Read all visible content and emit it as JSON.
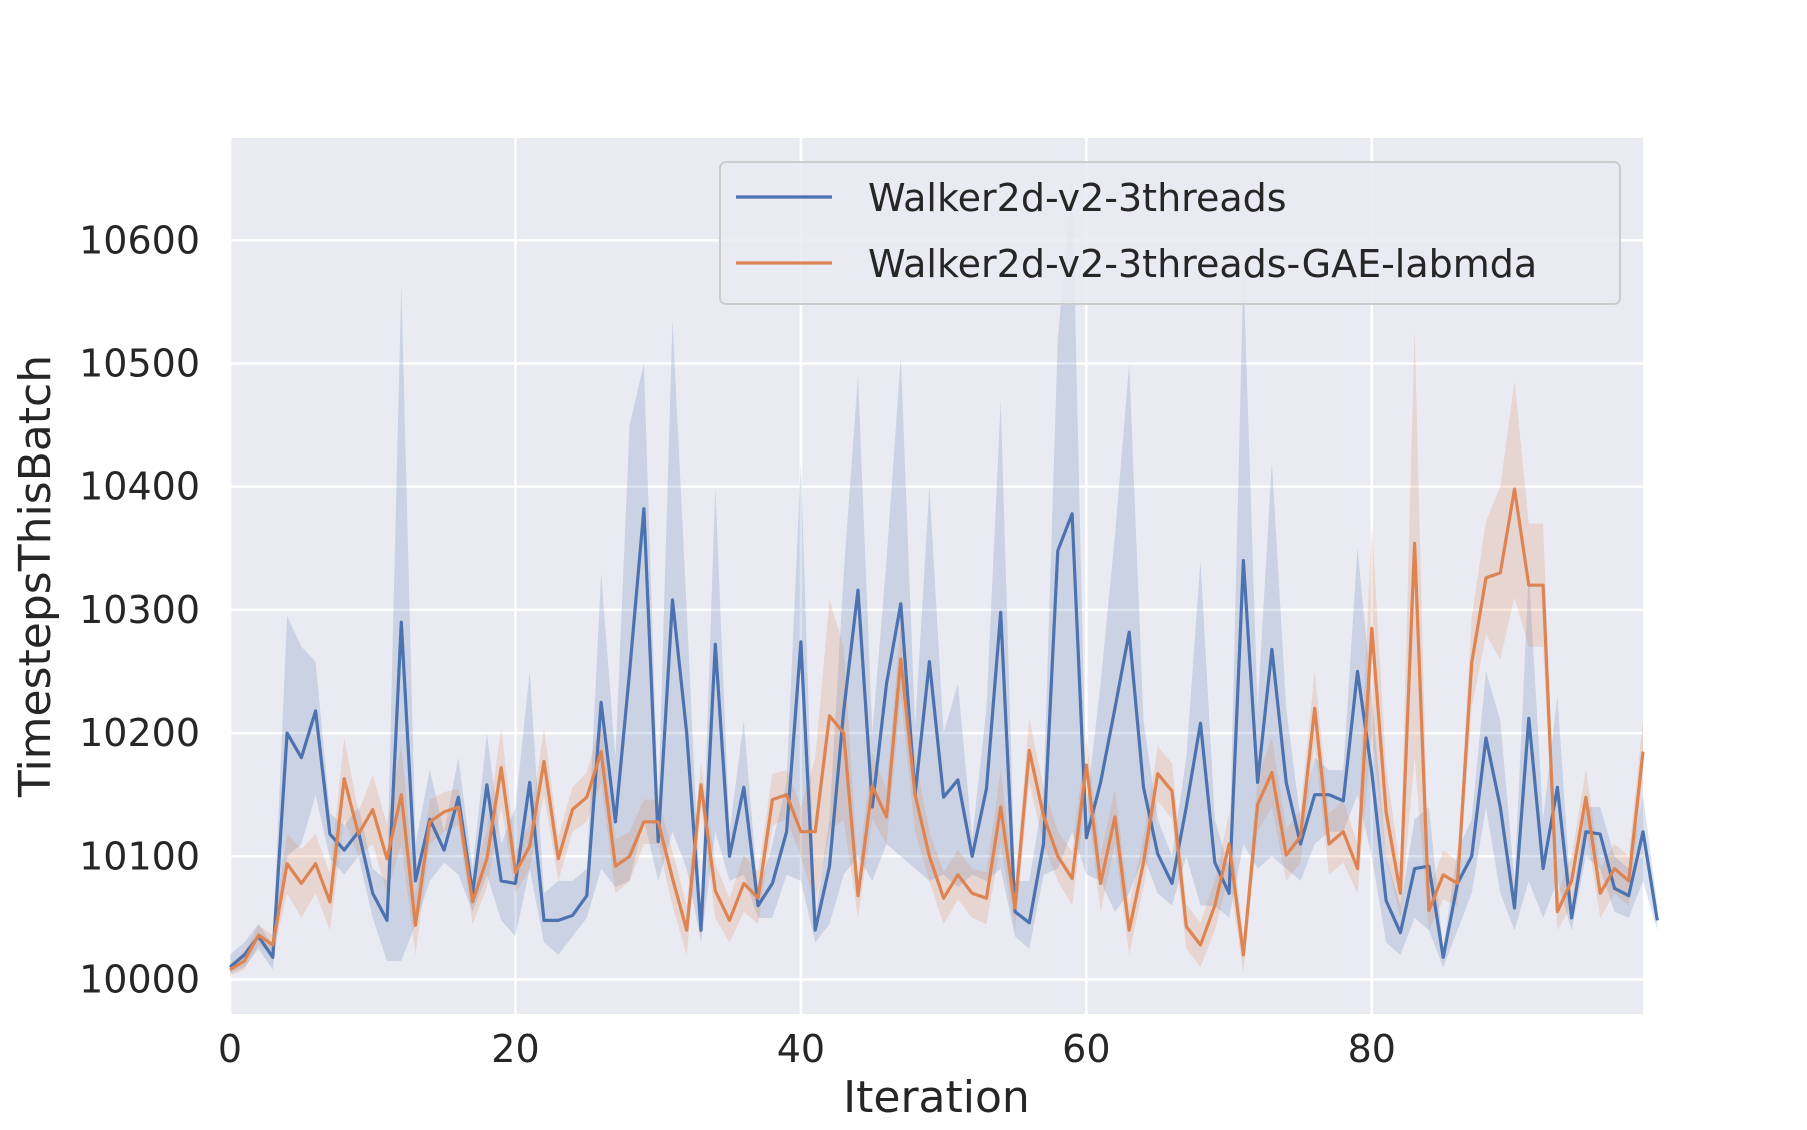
{
  "chart_data": {
    "type": "line",
    "title": "",
    "xlabel": "Iteration",
    "ylabel": "TimestepsThisBatch",
    "xlim": [
      0,
      99
    ],
    "ylim": [
      9972,
      10683
    ],
    "xticks": [
      0,
      20,
      40,
      60,
      80
    ],
    "yticks": [
      10000,
      10100,
      10200,
      10300,
      10400,
      10500,
      10600
    ],
    "grid": true,
    "legend_position": "top-right",
    "style": {
      "background": "#eaeaf2",
      "grid_color": "#ffffff"
    },
    "series": [
      {
        "name": "Walker2d-v2-3threads",
        "color": "#4c72b0",
        "values": [
          10010,
          10020,
          10035,
          10018,
          10200,
          10180,
          10218,
          10118,
          10105,
          10120,
          10070,
          10048,
          10290,
          10080,
          10130,
          10105,
          10148,
          10070,
          10158,
          10080,
          10078,
          10160,
          10048,
          10048,
          10052,
          10068,
          10225,
          10128,
          10250,
          10382,
          10112,
          10308,
          10200,
          10040,
          10272,
          10100,
          10156,
          10060,
          10078,
          10120,
          10274,
          10040,
          10092,
          10218,
          10316,
          10140,
          10240,
          10305,
          10150,
          10258,
          10148,
          10162,
          10100,
          10155,
          10298,
          10055,
          10046,
          10110,
          10348,
          10378,
          10115,
          10160,
          10220,
          10282,
          10156,
          10102,
          10078,
          10140,
          10208,
          10095,
          10070,
          10340,
          10160,
          10268,
          10160,
          10110,
          10150,
          10150,
          10145,
          10250,
          10168,
          10064,
          10038,
          10090,
          10092,
          10018,
          10078,
          10100,
          10196,
          10140,
          10058,
          10212,
          10090,
          10156,
          10050,
          10120,
          10118,
          10074,
          10068,
          10120,
          10048
        ],
        "band_low": [
          10005,
          10010,
          10025,
          10008,
          10100,
          10110,
          10150,
          10098,
          10085,
          10100,
          10050,
          10015,
          10015,
          10045,
          10080,
          10095,
          10085,
          10055,
          10085,
          10048,
          10035,
          10090,
          10030,
          10020,
          10035,
          10050,
          10090,
          10075,
          10080,
          10130,
          10080,
          10120,
          10090,
          10030,
          10120,
          10080,
          10085,
          10050,
          10050,
          10085,
          10080,
          10030,
          10045,
          10085,
          10100,
          10080,
          10110,
          10100,
          10090,
          10080,
          10085,
          10075,
          10085,
          10080,
          10090,
          10035,
          10025,
          10085,
          10090,
          10120,
          10085,
          10080,
          10055,
          10070,
          10100,
          10070,
          10060,
          10100,
          10060,
          10060,
          10050,
          10110,
          10090,
          10100,
          10090,
          10080,
          10110,
          10120,
          10120,
          10150,
          10100,
          10030,
          10020,
          10050,
          10040,
          10010,
          10040,
          10070,
          10140,
          10070,
          10040,
          10080,
          10050,
          10080,
          10040,
          10100,
          10090,
          10055,
          10050,
          10080,
          10040
        ],
        "band_high": [
          10020,
          10030,
          10045,
          10028,
          10295,
          10270,
          10258,
          10135,
          10125,
          10140,
          10090,
          10080,
          10565,
          10110,
          10170,
          10120,
          10180,
          10090,
          10200,
          10110,
          10140,
          10250,
          10070,
          10080,
          10080,
          10090,
          10330,
          10180,
          10450,
          10500,
          10140,
          10535,
          10300,
          10050,
          10400,
          10120,
          10210,
          10070,
          10110,
          10160,
          10420,
          10050,
          10130,
          10330,
          10490,
          10200,
          10340,
          10505,
          10205,
          10400,
          10200,
          10240,
          10115,
          10220,
          10470,
          10080,
          10080,
          10150,
          10520,
          10650,
          10140,
          10240,
          10360,
          10500,
          10210,
          10130,
          10100,
          10180,
          10340,
          10130,
          10090,
          10575,
          10220,
          10420,
          10220,
          10130,
          10180,
          10170,
          10170,
          10350,
          10230,
          10100,
          10060,
          10130,
          10140,
          10025,
          10105,
          10130,
          10250,
          10210,
          10080,
          10330,
          10130,
          10230,
          10060,
          10140,
          10140,
          10100,
          10090,
          10150,
          10060
        ]
      },
      {
        "name": "Walker2d-v2-3threads-GAE-labmda",
        "color": "#dd8452",
        "values": [
          10008,
          10015,
          10036,
          10028,
          10094,
          10078,
          10094,
          10063,
          10163,
          10118,
          10138,
          10098,
          10150,
          10044,
          10128,
          10136,
          10140,
          10063,
          10098,
          10172,
          10087,
          10108,
          10177,
          10098,
          10138,
          10148,
          10185,
          10092,
          10100,
          10128,
          10128,
          10082,
          10040,
          10158,
          10072,
          10048,
          10078,
          10066,
          10146,
          10150,
          10120,
          10120,
          10214,
          10200,
          10068,
          10157,
          10132,
          10260,
          10150,
          10100,
          10066,
          10085,
          10070,
          10066,
          10140,
          10058,
          10186,
          10133,
          10100,
          10082,
          10174,
          10078,
          10132,
          10040,
          10095,
          10167,
          10153,
          10043,
          10028,
          10060,
          10110,
          10020,
          10142,
          10168,
          10101,
          10116,
          10220,
          10110,
          10120,
          10090,
          10285,
          10136,
          10070,
          10354,
          10056,
          10085,
          10078,
          10257,
          10326,
          10330,
          10398,
          10320,
          10320,
          10055,
          10080,
          10148,
          10070,
          10090,
          10080,
          10185
        ],
        "band_low": [
          10003,
          10008,
          10028,
          10020,
          10070,
          10050,
          10070,
          10040,
          10130,
          10100,
          10110,
          10070,
          10110,
          10020,
          10110,
          10120,
          10125,
          10045,
          10075,
          10140,
          10070,
          10090,
          10150,
          10080,
          10120,
          10128,
          10160,
          10070,
          10080,
          10110,
          10110,
          10060,
          10020,
          10140,
          10050,
          10030,
          10055,
          10045,
          10125,
          10130,
          10100,
          10060,
          10120,
          10130,
          10050,
          10130,
          10110,
          10230,
          10120,
          10080,
          10045,
          10065,
          10050,
          10045,
          10110,
          10040,
          10160,
          10110,
          10080,
          10060,
          10150,
          10055,
          10110,
          10020,
          10075,
          10145,
          10130,
          10025,
          10010,
          10040,
          10085,
          10005,
          10120,
          10140,
          10080,
          10095,
          10190,
          10085,
          10095,
          10070,
          10200,
          10100,
          10050,
          10180,
          10040,
          10065,
          10060,
          10220,
          10280,
          10260,
          10310,
          10270,
          10270,
          10040,
          10060,
          10125,
          10050,
          10070,
          10060,
          10160
        ],
        "band_high": [
          10013,
          10022,
          10044,
          10036,
          10118,
          10106,
          10118,
          10086,
          10196,
          10136,
          10166,
          10126,
          10190,
          10068,
          10146,
          10152,
          10155,
          10081,
          10121,
          10204,
          10104,
          10126,
          10204,
          10116,
          10156,
          10168,
          10210,
          10114,
          10120,
          10146,
          10146,
          10104,
          10060,
          10176,
          10094,
          10066,
          10101,
          10087,
          10167,
          10170,
          10140,
          10180,
          10308,
          10270,
          10086,
          10184,
          10154,
          10290,
          10180,
          10120,
          10087,
          10105,
          10090,
          10087,
          10170,
          10076,
          10212,
          10156,
          10120,
          10104,
          10198,
          10101,
          10154,
          10060,
          10115,
          10189,
          10176,
          10061,
          10046,
          10080,
          10135,
          10035,
          10164,
          10196,
          10122,
          10137,
          10250,
          10135,
          10145,
          10110,
          10370,
          10172,
          10090,
          10528,
          10072,
          10105,
          10096,
          10294,
          10372,
          10400,
          10486,
          10370,
          10370,
          10070,
          10100,
          10171,
          10090,
          10110,
          10100,
          10210
        ]
      }
    ]
  }
}
